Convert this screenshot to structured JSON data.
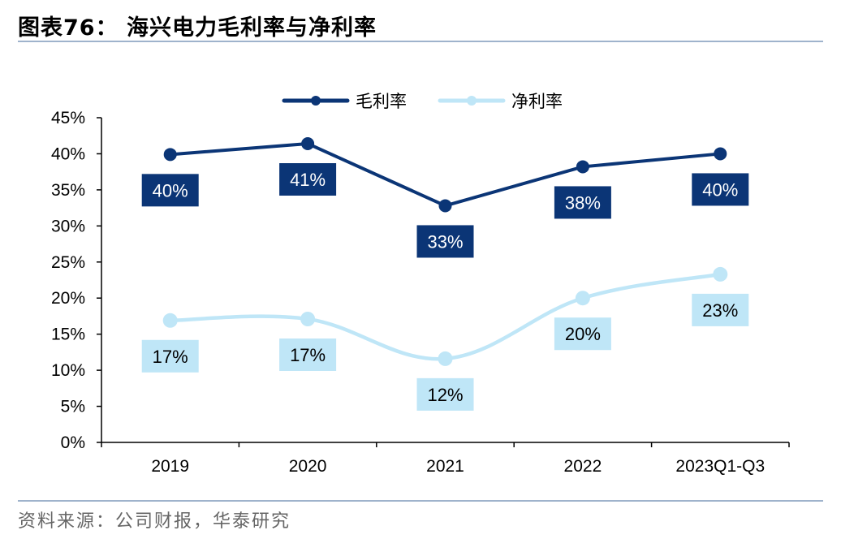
{
  "figure": {
    "title": "图表76： 海兴电力毛利率与净利率",
    "source": "资料来源：公司财报，华泰研究"
  },
  "colors": {
    "gross": "#0b3576",
    "net": "#bfe6f7",
    "axis": "#000000",
    "gross_label_text": "#ffffff",
    "net_label_text": "#000000"
  },
  "chart_data": {
    "type": "line",
    "title": "海兴电力毛利率与净利率",
    "xlabel": "",
    "ylabel": "",
    "categories": [
      "2019",
      "2020",
      "2021",
      "2022",
      "2023Q1-Q3"
    ],
    "ylim": [
      0,
      45
    ],
    "yticks": [
      0,
      5,
      10,
      15,
      20,
      25,
      30,
      35,
      40,
      45
    ],
    "ytick_labels": [
      "0%",
      "5%",
      "10%",
      "15%",
      "20%",
      "25%",
      "30%",
      "35%",
      "40%",
      "45%"
    ],
    "grid": false,
    "legend_position": "top-center",
    "series": [
      {
        "name": "毛利率",
        "values": [
          39.9,
          41.4,
          32.8,
          38.2,
          40.0
        ],
        "data_labels": [
          "40%",
          "41%",
          "33%",
          "38%",
          "40%"
        ],
        "label_placement": "below"
      },
      {
        "name": "净利率",
        "values": [
          16.9,
          17.1,
          11.6,
          20.0,
          23.3
        ],
        "data_labels": [
          "17%",
          "17%",
          "12%",
          "20%",
          "23%"
        ],
        "label_placement": "below"
      }
    ]
  }
}
